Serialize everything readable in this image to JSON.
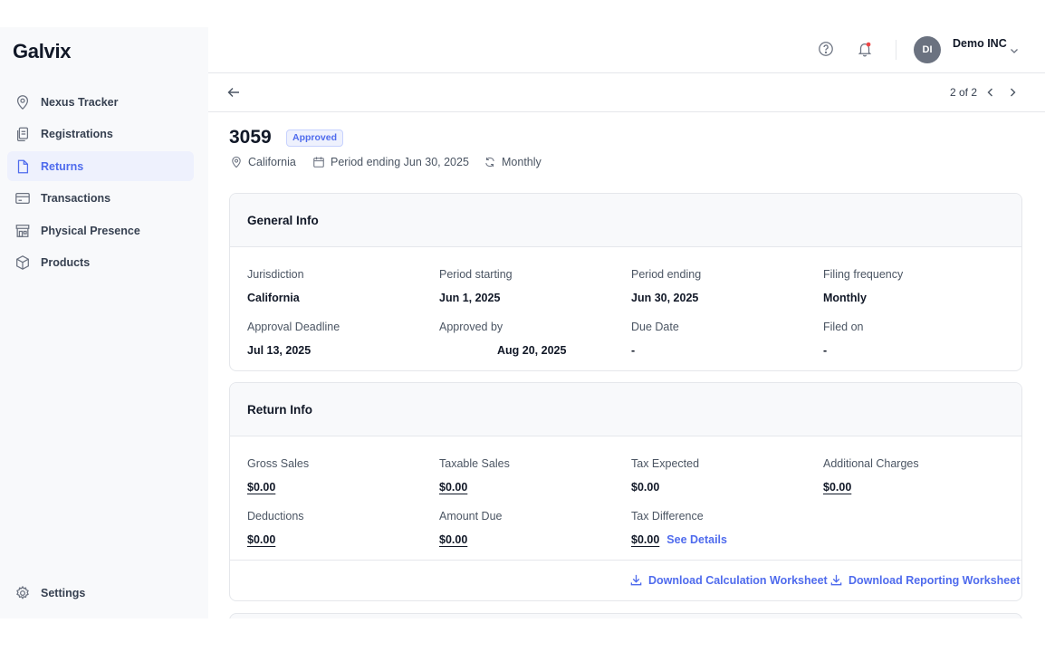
{
  "app": {
    "logo": "Galvix"
  },
  "sidebar": {
    "items": [
      {
        "label": "Nexus Tracker",
        "icon": "location-pin-icon"
      },
      {
        "label": "Registrations",
        "icon": "documents-icon"
      },
      {
        "label": "Returns",
        "icon": "document-icon",
        "active": true
      },
      {
        "label": "Transactions",
        "icon": "credit-card-icon"
      },
      {
        "label": "Physical Presence",
        "icon": "storefront-icon"
      },
      {
        "label": "Products",
        "icon": "box-icon"
      }
    ],
    "settings_label": "Settings"
  },
  "header": {
    "avatar_initials": "DI",
    "org_name": "Demo INC"
  },
  "pager": {
    "text": "2 of 2"
  },
  "return": {
    "number": "3059",
    "status": "Approved",
    "location": "California",
    "period": "Period ending Jun 30, 2025",
    "frequency": "Monthly"
  },
  "general_info": {
    "title": "General Info",
    "fields": [
      {
        "label": "Jurisdiction",
        "value": "California"
      },
      {
        "label": "Period starting",
        "value": "Jun 1, 2025"
      },
      {
        "label": "Period ending",
        "value": "Jun 30, 2025"
      },
      {
        "label": "Filing frequency",
        "value": "Monthly"
      },
      {
        "label": "Approval Deadline",
        "value": "Jul 13, 2025"
      },
      {
        "label": "Approved by",
        "value": "Aug 20, 2025"
      },
      {
        "label": "Due Date",
        "value": "-"
      },
      {
        "label": "Filed on",
        "value": "-"
      }
    ]
  },
  "return_info": {
    "title": "Return Info",
    "fields": [
      {
        "label": "Gross Sales",
        "value": "$0.00"
      },
      {
        "label": "Taxable Sales",
        "value": "$0.00"
      },
      {
        "label": "Tax Expected",
        "value": "$0.00"
      },
      {
        "label": "Additional Charges",
        "value": "$0.00"
      },
      {
        "label": "Deductions",
        "value": "$0.00"
      },
      {
        "label": "Amount Due",
        "value": "$0.00"
      },
      {
        "label": "Tax Difference",
        "value": "$0.00"
      }
    ],
    "see_details": "See Details",
    "download_calc": "Download Calculation Worksheet",
    "download_report": "Download Reporting Worksheet"
  },
  "colors": {
    "accent": "#4f6bed",
    "sidebar_bg": "#f8f9fb",
    "border": "#e5e7eb"
  }
}
